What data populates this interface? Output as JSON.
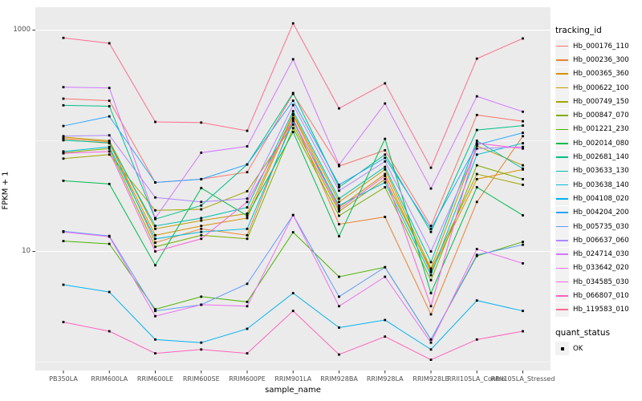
{
  "chart_data": {
    "type": "line",
    "title": "",
    "xlabel": "sample_name",
    "ylabel": "FPKM + 1",
    "y_scale": "log10",
    "ylim": [
      0.84,
      1600
    ],
    "y_ticks": [
      {
        "value": 10,
        "label": "10"
      },
      {
        "value": 1000,
        "label": "1000"
      }
    ],
    "gridlines": {
      "major": [
        10,
        1000
      ],
      "minor": [
        1,
        100
      ]
    },
    "panel_bg": "#EBEBEB",
    "grid_color": "#FFFFFF",
    "point_color": "#000000",
    "axis_text_color": "#4D4D4D",
    "categories": [
      "PB350LA",
      "RRIM600LA",
      "RRIM600LE",
      "RRIM600SE",
      "RRIM600PE",
      "RRIM901LA",
      "RRIM928BA",
      "RRIM928LA",
      "RRIM928LE",
      "RRII105LA_Control",
      "RRII105LA_Stressed"
    ],
    "series": [
      {
        "name": "Hb_000176_110",
        "color": "#F8766D",
        "values": [
          240,
          230,
          42,
          45,
          52,
          265,
          59,
          82,
          17,
          171,
          150
        ]
      },
      {
        "name": "Hb_000236_300",
        "color": "#EA8331",
        "values": [
          105,
          98,
          12,
          16,
          14,
          160,
          17.6,
          20.5,
          2.7,
          28,
          110
        ]
      },
      {
        "name": "Hb_000365_360",
        "color": "#D89000",
        "values": [
          102,
          95,
          14,
          17,
          20,
          170,
          25,
          50,
          6.5,
          45,
          55
        ]
      },
      {
        "name": "Hb_000622_100",
        "color": "#C49A00",
        "values": [
          108,
          100,
          16,
          19,
          22,
          175,
          28,
          55,
          7,
          90,
          60
        ]
      },
      {
        "name": "Hb_000749_150",
        "color": "#A3A500",
        "values": [
          69,
          75,
          23.5,
          24,
          35,
          140,
          23,
          45,
          6.8,
          50,
          40
        ]
      },
      {
        "name": "Hb_000847_070",
        "color": "#7CAE00",
        "values": [
          78,
          85,
          11,
          14,
          13,
          130,
          21,
          38,
          5.5,
          60,
          45
        ]
      },
      {
        "name": "Hb_001221_230",
        "color": "#4CB400",
        "values": [
          12.4,
          11.7,
          3,
          3.9,
          3.5,
          14.9,
          5.9,
          7.2,
          1.6,
          9.1,
          12.2
        ]
      },
      {
        "name": "Hb_002014_080",
        "color": "#00BB4E",
        "values": [
          43.5,
          40.7,
          7.5,
          37.4,
          21,
          120,
          13.7,
          104,
          4.2,
          38,
          21.2
        ]
      },
      {
        "name": "Hb_002681_140",
        "color": "#00C087",
        "values": [
          209,
          205,
          19.6,
          26,
          61,
          270,
          38,
          75,
          15,
          125,
          137
        ]
      },
      {
        "name": "Hb_003633_130",
        "color": "#00C0AF",
        "values": [
          101,
          96,
          17,
          20,
          25,
          185,
          30,
          58,
          8,
          100,
          56
        ]
      },
      {
        "name": "Hb_003638_140",
        "color": "#00BCD8",
        "values": [
          80,
          88,
          13,
          15,
          16,
          150,
          26,
          42,
          6.1,
          75,
          95
        ]
      },
      {
        "name": "Hb_004108_020",
        "color": "#00B3F2",
        "values": [
          5,
          4.3,
          1.6,
          1.5,
          2,
          4.2,
          2.05,
          2.4,
          1.3,
          3.6,
          2.9
        ]
      },
      {
        "name": "Hb_004204_200",
        "color": "#29A3FF",
        "values": [
          136,
          166,
          42,
          45,
          61,
          230,
          40,
          70,
          16,
          92,
          118
        ]
      },
      {
        "name": "Hb_005735_030",
        "color": "#619CFF",
        "values": [
          15.2,
          13.8,
          2.9,
          3.3,
          5.1,
          21.3,
          3.9,
          7.2,
          1.6,
          9.3,
          11.5
        ]
      },
      {
        "name": "Hb_006637_060",
        "color": "#AE87FF",
        "values": [
          110,
          112,
          30.7,
          28,
          30,
          210,
          35.4,
          65,
          10,
          85,
          88
        ]
      },
      {
        "name": "Hb_024714_030",
        "color": "#D277FF",
        "values": [
          305,
          300,
          20,
          78,
          89,
          545,
          60.5,
          217,
          37,
          252,
          183
        ]
      },
      {
        "name": "Hb_033642_020",
        "color": "#EE6EF0",
        "values": [
          15,
          13.6,
          2.6,
          3.3,
          3.2,
          21.3,
          3.2,
          5.9,
          1.5,
          10.5,
          7.8
        ]
      },
      {
        "name": "Hb_034585_030",
        "color": "#FB61D7",
        "values": [
          77,
          80,
          10,
          13,
          28,
          155,
          24,
          48,
          3.2,
          95,
          85
        ]
      },
      {
        "name": "Hb_066807_010",
        "color": "#FF62BC",
        "values": [
          2.3,
          1.9,
          1.2,
          1.3,
          1.2,
          2.9,
          1.17,
          1.7,
          1.05,
          1.6,
          1.9
        ]
      },
      {
        "name": "Hb_119583_010",
        "color": "#FF6C91",
        "values": [
          850,
          760,
          148,
          146,
          123,
          1150,
          196,
          330,
          57,
          552,
          840
        ]
      }
    ],
    "legend": {
      "title": "tracking_id"
    },
    "legend2": {
      "title": "quant_status",
      "items": [
        {
          "label": "OK",
          "color": "#000000"
        }
      ]
    }
  }
}
